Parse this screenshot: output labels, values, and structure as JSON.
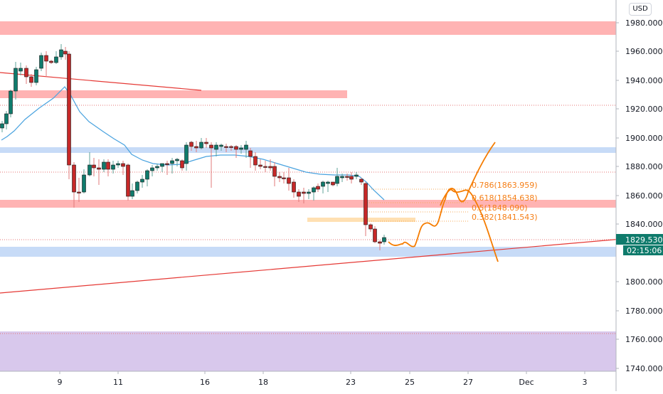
{
  "currency_button": "USD",
  "colors": {
    "bull": "#0f7b6c",
    "bear": "#c62828",
    "resistance_zone": "#ffb3b3",
    "support_zone": "#c7dbf7",
    "purple_zone": "#d8c8ec",
    "trendline": "#e53935",
    "ma_line": "#4aa3df",
    "projection": "#f57c00",
    "last_price_bg": "#0f7b6c"
  },
  "price_axis": {
    "labels": [
      "1980.000",
      "1960.000",
      "1940.000",
      "1920.000",
      "1900.000",
      "1880.000",
      "1860.000",
      "1840.000",
      "1800.000",
      "1780.000",
      "1760.000",
      "1740.000"
    ],
    "last_price": "1829.530",
    "countdown": "02:15:06"
  },
  "time_axis": {
    "labels": [
      "9",
      "11",
      "16",
      "18",
      "23",
      "25",
      "27",
      "Dec",
      "3"
    ]
  },
  "fib_levels": [
    {
      "label": "0.786(1863.959)"
    },
    {
      "label": "0.618(1854.638)"
    },
    {
      "label": "0.5(1848.090)"
    },
    {
      "label": "0.382(1841.543)"
    }
  ],
  "chart_data": {
    "type": "candlestick",
    "title": "",
    "xlabel": "",
    "ylabel": "USD",
    "ylim": [
      1735,
      1990
    ],
    "x_ticks": [
      "9",
      "11",
      "16",
      "18",
      "23",
      "25",
      "27",
      "Dec",
      "3"
    ],
    "y_ticks": [
      1740,
      1760,
      1780,
      1800,
      1820,
      1840,
      1860,
      1880,
      1900,
      1920,
      1940,
      1960,
      1980
    ],
    "last_price": 1829.53,
    "zones": [
      {
        "type": "resistance",
        "from": 1970,
        "to": 1980
      },
      {
        "type": "resistance",
        "from": 1930,
        "to": 1935
      },
      {
        "type": "support",
        "from": 1890,
        "to": 1893
      },
      {
        "type": "resistance",
        "from": 1852,
        "to": 1857
      },
      {
        "type": "support",
        "from": 1817,
        "to": 1823
      },
      {
        "type": "purple",
        "from": 1735,
        "to": 1765
      }
    ],
    "horizontal_dotted_levels": [
      1922,
      1876,
      1829.5,
      1763
    ],
    "fibonacci": [
      {
        "ratio": 0.786,
        "price": 1863.959
      },
      {
        "ratio": 0.618,
        "price": 1854.638
      },
      {
        "ratio": 0.5,
        "price": 1848.09
      },
      {
        "ratio": 0.382,
        "price": 1841.543
      }
    ],
    "trendlines": [
      {
        "name": "descending",
        "from": {
          "x": "~6",
          "y": 1947
        },
        "to": {
          "x": "~14",
          "y": 1933
        }
      },
      {
        "name": "ascending support",
        "from": {
          "x": "left edge",
          "y": 1791
        },
        "to": {
          "x": "right edge",
          "y": 1831
        }
      }
    ],
    "moving_average": "blue line peaks ~1937 near Nov 9, declines to ~1856 by Nov 24",
    "projections": [
      "bullish path to ~1897 by Nov 28",
      "bearish path to ~1813 by Nov 28"
    ],
    "notes": "Gold (XAU/USD) 4H-style chart, Nov 2020; sharp drop Nov 9 from ~1960 to ~1850; second drop Nov 23 to ~1820"
  }
}
